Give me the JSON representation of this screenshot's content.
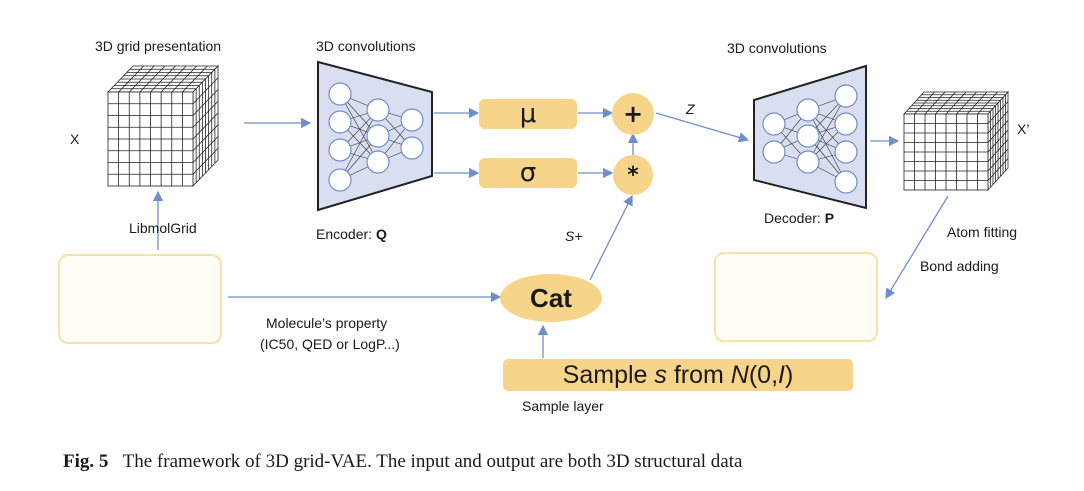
{
  "labels": {
    "grid_title": "3D grid presentation",
    "enc_title": "3D convolutions",
    "dec_title": "3D convolutions",
    "x_in": "X",
    "x_out": "X’",
    "libmolgrid": "LibmolGrid",
    "encoder_prefix": "Encoder: ",
    "encoder_letter": "Q",
    "decoder_prefix": "Decoder: ",
    "decoder_letter": "P",
    "z": "Z",
    "s_plus": "S+",
    "atom_fitting": "Atom fitting",
    "bond_adding": "Bond adding",
    "property_line1": "Molecule’s property",
    "property_line2": "(IC50, QED or LogP...)",
    "sample_layer": "Sample layer"
  },
  "nodes": {
    "mu": "μ",
    "sigma": "σ",
    "plus": "+",
    "times": "*",
    "cat": "Cat",
    "sample_prefix": "Sample ",
    "sample_s": "s",
    "sample_from": " from ",
    "sample_n": "N",
    "sample_paren_open": "(0,",
    "sample_i": "I",
    "sample_paren_close": ")"
  },
  "caption": {
    "fig": "Fig. 5",
    "text": "The framework of 3D grid-VAE. The input and output are both 3D structural data"
  },
  "colors": {
    "node_fill": "#f6d58a",
    "net_fill": "#d9dff0",
    "arrow": "#6f8fc9",
    "carbon": "#2db82d",
    "nitrogen": "#2222cc",
    "oxygen": "#dd2222",
    "hydrogen": "#dddddd"
  }
}
